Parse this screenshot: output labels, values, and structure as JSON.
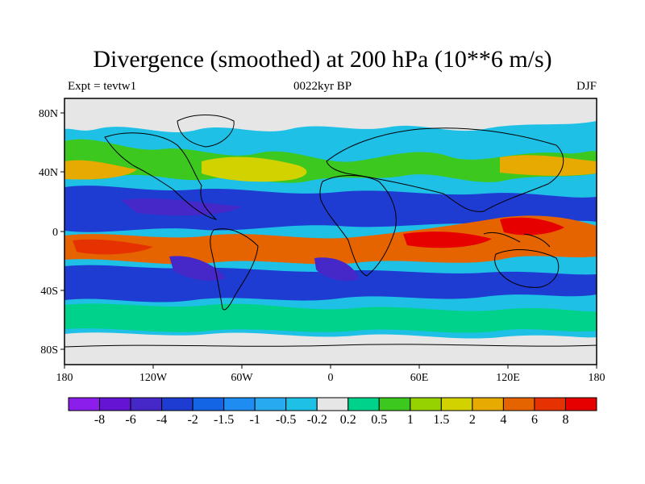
{
  "title": "Divergence (smoothed) at 200 hPa (10**6 m/s)",
  "subtitle_left": "Expt = tevtw1",
  "subtitle_center": "0022kyr BP",
  "subtitle_right": "DJF",
  "x_ticks": [
    "180",
    "120W",
    "60W",
    "0",
    "60E",
    "120E",
    "180"
  ],
  "y_ticks": [
    "80N",
    "40N",
    "0",
    "40S",
    "80S"
  ],
  "colorbar": {
    "labels": [
      "-8",
      "-6",
      "-4",
      "-2",
      "-1.5",
      "-1",
      "-0.5",
      "-0.2",
      "0.2",
      "0.5",
      "1",
      "1.5",
      "2",
      "4",
      "6",
      "8"
    ],
    "colors": [
      "#8c1eeb",
      "#6414d2",
      "#4628c8",
      "#1e3cd2",
      "#1464e6",
      "#1e8cf0",
      "#28aaf0",
      "#1ec0e6",
      "#e6e6e6",
      "#00d28c",
      "#3cc81e",
      "#96d200",
      "#d2d200",
      "#e6aa00",
      "#e66400",
      "#e63200",
      "#e60000"
    ]
  }
}
